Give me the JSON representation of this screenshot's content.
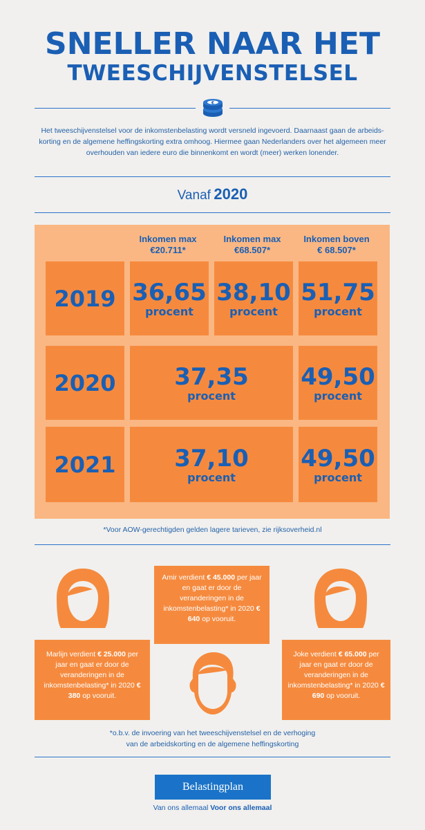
{
  "title": {
    "line1": "SNELLER NAAR HET",
    "line2": "TWEESCHIJVENSTELSEL"
  },
  "intro": "Het tweeschijvenstelsel voor de inkomstenbelasting wordt versneld ingevoerd. Daarnaast gaan de arbeids-korting en de algemene heffingskorting extra omhoog. Hiermee gaan Nederlanders over het algemeen meer overhouden van iedere euro die binnenkomt en wordt (meer) werken lonender.",
  "vanaf": {
    "label": "Vanaf",
    "year": "2020"
  },
  "columns": [
    {
      "line1": "Inkomen max",
      "line2": "€20.711*"
    },
    {
      "line1": "Inkomen max",
      "line2": "€68.507*"
    },
    {
      "line1": "Inkomen boven",
      "line2": "€ 68.507*"
    }
  ],
  "rows": [
    {
      "year": "2019",
      "values": [
        "36,65",
        "38,10",
        "51,75"
      ],
      "unit": "procent"
    },
    {
      "year": "2020",
      "values": [
        "37,35",
        "49,50"
      ],
      "unit": "procent"
    },
    {
      "year": "2021",
      "values": [
        "37,10",
        "49,50"
      ],
      "unit": "procent"
    }
  ],
  "aow_note": "*Voor AOW-gerechtigden gelden lagere tarieven, zie rijksoverheid.nl",
  "stories": {
    "amir": {
      "pre": "Amir verdient ",
      "income": "€ 45.000",
      "mid": " per jaar en gaat er door de veranderingen in de inkomstenbelasting* in 2020 ",
      "gain": "€ 640",
      "post": " op vooruit."
    },
    "marlijn": {
      "pre": "Marlijn verdient ",
      "income": "€ 25.000",
      "mid": " per jaar en gaat er door de veranderingen in de inkomstenbelasting* in 2020 ",
      "gain": "€ 380",
      "post": " op vooruit."
    },
    "joke": {
      "pre": "Joke verdient ",
      "income": "€ 65.000",
      "mid": " per jaar en gaat er door de veranderingen in de inkomstenbelasting* in 2020 ",
      "gain": "€ 690",
      "post": " op vooruit."
    }
  },
  "basis_note": {
    "line1": "*o.b.v. de invoering van het tweeschijvenstelsel en de verhoging",
    "line2": "van de arbeidskorting en de algemene heffingskorting"
  },
  "logo": "Belastingplan",
  "tagline": {
    "normal": "Van ons allemaal ",
    "bold": "Voor ons allemaal"
  },
  "icons": {
    "coins": "coins-icon",
    "woman": "woman-icon",
    "man": "man-icon"
  },
  "colors": {
    "blue": "#1a5fb4",
    "orange": "#f58a3e",
    "light_orange": "#fab783",
    "logo_blue": "#1a73c8"
  }
}
